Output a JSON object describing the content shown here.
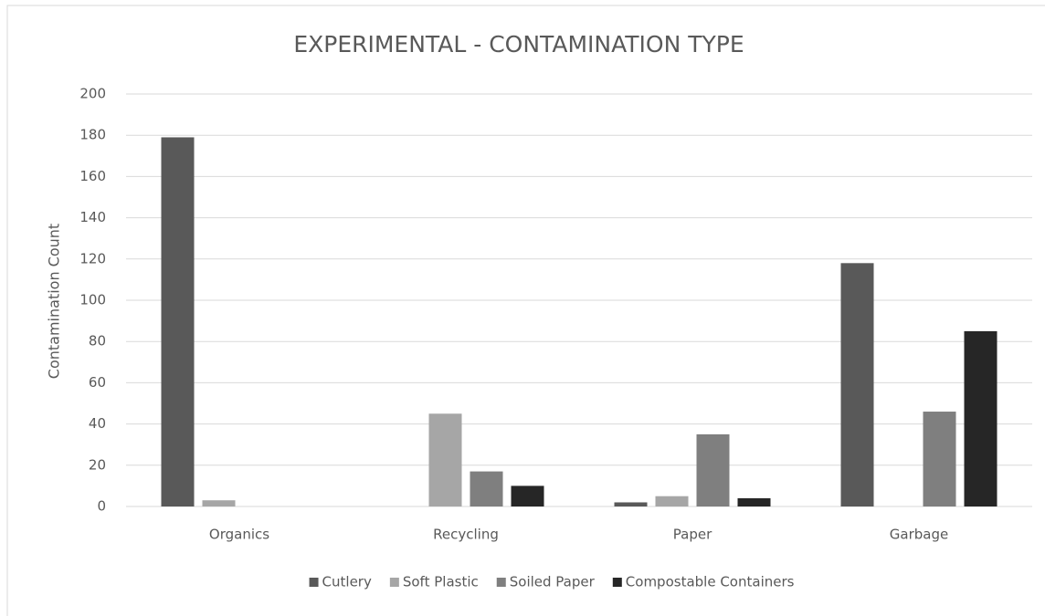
{
  "chart_data": {
    "type": "bar",
    "title": "EXPERIMENTAL - CONTAMINATION TYPE",
    "y_label": "Contamination Count",
    "categories": [
      "Organics",
      "Recycling",
      "Paper",
      "Garbage"
    ],
    "series": [
      {
        "name": "Cutlery",
        "color": "#595959",
        "values": [
          179,
          0,
          2,
          118
        ]
      },
      {
        "name": "Soft Plastic",
        "color": "#a6a6a6",
        "values": [
          3,
          45,
          5,
          0
        ]
      },
      {
        "name": "Soiled Paper",
        "color": "#7f7f7f",
        "values": [
          0,
          17,
          35,
          46
        ]
      },
      {
        "name": "Compostable Containers",
        "color": "#262626",
        "values": [
          0,
          10,
          4,
          85
        ]
      }
    ],
    "ylim": [
      0,
      200
    ],
    "yticks": [
      0,
      20,
      40,
      60,
      80,
      100,
      120,
      140,
      160,
      180,
      200
    ],
    "grid": true,
    "legend": "bottom"
  }
}
